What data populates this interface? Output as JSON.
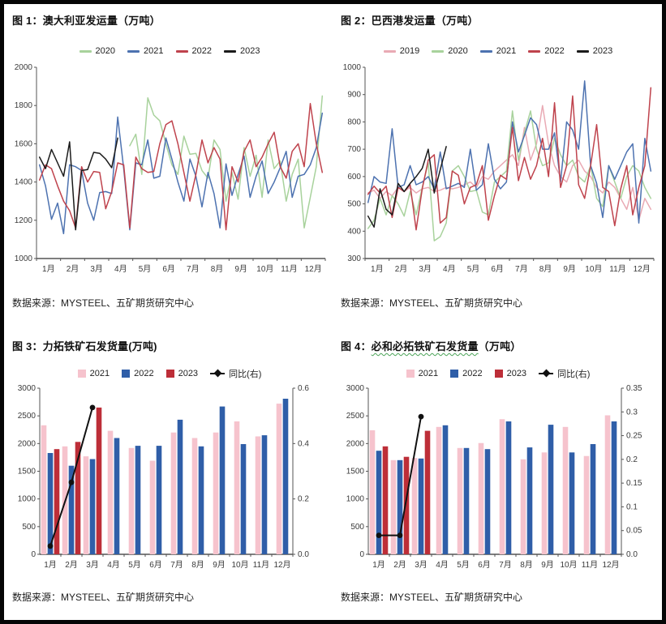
{
  "page": {
    "background": "#ffffff",
    "frame_color": "#050505"
  },
  "chart_data": [
    {
      "id": "australia-shipments",
      "type": "line",
      "title": "图 1：澳大利亚发运量（万吨）",
      "source": "数据来源：MYSTEEL、五矿期货研究中心",
      "x_tick_labels": [
        "1月",
        "2月",
        "3月",
        "4月",
        "5月",
        "6月",
        "7月",
        "8月",
        "9月",
        "10月",
        "11月",
        "12月"
      ],
      "ylim": [
        1000,
        2000
      ],
      "ytick_step": 200,
      "ytick_labels": [
        "1000",
        "1200",
        "1400",
        "1600",
        "1800",
        "2000"
      ],
      "weeks_per_year": 48,
      "grid": false,
      "legend_position": "top",
      "series": [
        {
          "name": "2020",
          "color": "#a8d29c",
          "start_week": 15,
          "values": [
            1590,
            1650,
            1440,
            1840,
            1750,
            1720,
            1600,
            1490,
            1440,
            1640,
            1545,
            1550,
            1460,
            1420,
            1620,
            1570,
            1300,
            1450,
            1310,
            1580,
            1430,
            1540,
            1320,
            1620,
            1470,
            1510,
            1300,
            1440,
            1520,
            1160,
            1320,
            1480,
            1850
          ]
        },
        {
          "name": "2021",
          "color": "#4d72b0",
          "start_week": 0,
          "values": [
            1490,
            1380,
            1205,
            1290,
            1130,
            1490,
            1480,
            1460,
            1290,
            1200,
            1345,
            1350,
            1340,
            1740,
            1470,
            1150,
            1500,
            1490,
            1620,
            1420,
            1430,
            1630,
            1520,
            1400,
            1300,
            1520,
            1430,
            1270,
            1450,
            1340,
            1160,
            1495,
            1330,
            1440,
            1535,
            1320,
            1430,
            1510,
            1340,
            1400,
            1475,
            1560,
            1320,
            1430,
            1440,
            1490,
            1580,
            1760
          ]
        },
        {
          "name": "2022",
          "color": "#bf434d",
          "start_week": 0,
          "values": [
            1410,
            1490,
            1470,
            1380,
            1300,
            1250,
            1160,
            1480,
            1400,
            1455,
            1450,
            1260,
            1350,
            1500,
            1490,
            1160,
            1530,
            1470,
            1450,
            1455,
            1600,
            1700,
            1720,
            1600,
            1450,
            1300,
            1440,
            1620,
            1500,
            1580,
            1520,
            1150,
            1480,
            1400,
            1560,
            1620,
            1480,
            1530,
            1600,
            1660,
            1480,
            1420,
            1560,
            1600,
            1480,
            1810,
            1600,
            1450
          ]
        },
        {
          "name": "2023",
          "color": "#1b1b1b",
          "start_week": 0,
          "values": [
            1530,
            1470,
            1570,
            1500,
            1430,
            1610,
            1150,
            1460,
            1465,
            1555,
            1550,
            1520,
            1475,
            1630
          ]
        }
      ]
    },
    {
      "id": "brazil-shipments",
      "type": "line",
      "title": "图 2：巴西港发运量（万吨）",
      "source": "数据来源：MYSTEEL、五矿期货研究中心",
      "x_tick_labels": [
        "1月",
        "2月",
        "3月",
        "4月",
        "5月",
        "6月",
        "7月",
        "8月",
        "9月",
        "10月",
        "11月",
        "12月"
      ],
      "ylim": [
        300,
        1000
      ],
      "ytick_step": 100,
      "ytick_labels": [
        "300",
        "400",
        "500",
        "600",
        "700",
        "800",
        "900",
        "1000"
      ],
      "weeks_per_year": 48,
      "grid": false,
      "legend_position": "top",
      "series": [
        {
          "name": "2019",
          "color": "#e9aab4",
          "start_week": 0,
          "values": [
            540,
            550,
            520,
            545,
            530,
            560,
            545,
            560,
            540,
            555,
            560,
            545,
            550,
            560,
            555,
            560,
            570,
            580,
            560,
            600,
            590,
            620,
            640,
            660,
            680,
            640,
            780,
            660,
            720,
            860,
            720,
            640,
            600,
            580,
            640,
            660,
            620,
            600,
            560,
            540,
            580,
            560,
            520,
            480,
            560,
            440,
            520,
            480
          ]
        },
        {
          "name": "2020",
          "color": "#a8d29c",
          "start_week": 0,
          "values": [
            410,
            440,
            520,
            460,
            530,
            500,
            455,
            545,
            460,
            560,
            650,
            365,
            380,
            430,
            620,
            640,
            600,
            545,
            550,
            470,
            460,
            580,
            600,
            620,
            840,
            660,
            760,
            840,
            700,
            640,
            650,
            740,
            680,
            640,
            660,
            600,
            580,
            640,
            520,
            490,
            640,
            580,
            520,
            600,
            640,
            620,
            560,
            520
          ]
        },
        {
          "name": "2021",
          "color": "#4d72b0",
          "start_week": 0,
          "values": [
            505,
            600,
            580,
            575,
            775,
            560,
            570,
            640,
            570,
            580,
            600,
            555,
            690,
            555,
            565,
            575,
            560,
            700,
            550,
            570,
            720,
            590,
            555,
            580,
            800,
            690,
            750,
            815,
            790,
            700,
            700,
            760,
            580,
            800,
            770,
            700,
            950,
            640,
            575,
            450,
            640,
            590,
            640,
            690,
            720,
            430,
            740,
            620
          ]
        },
        {
          "name": "2022",
          "color": "#bf434d",
          "start_week": 0,
          "values": [
            535,
            565,
            540,
            565,
            450,
            560,
            545,
            570,
            405,
            555,
            660,
            680,
            430,
            450,
            620,
            605,
            500,
            560,
            570,
            640,
            440,
            530,
            605,
            590,
            780,
            585,
            670,
            590,
            640,
            740,
            600,
            870,
            560,
            640,
            895,
            570,
            520,
            640,
            790,
            560,
            545,
            420,
            555,
            640,
            460,
            560,
            640,
            925
          ]
        },
        {
          "name": "2023",
          "color": "#1b1b1b",
          "start_week": 0,
          "values": [
            455,
            415,
            555,
            480,
            460,
            575,
            545,
            575,
            600,
            630,
            700,
            540,
            625,
            710
          ]
        }
      ]
    },
    {
      "id": "rio-tinto-shipments",
      "type": "bar",
      "title": "图 3：力拓铁矿石发货量(万吨)",
      "source": "数据来源：MYSTEEL、五矿期货研究中心",
      "categories": [
        "1月",
        "2月",
        "3月",
        "4月",
        "5月",
        "6月",
        "7月",
        "8月",
        "9月",
        "10月",
        "11月",
        "12月"
      ],
      "ylim_left": [
        0,
        3000
      ],
      "ytick_step_left": 500,
      "ytick_labels_left": [
        "0",
        "500",
        "1000",
        "1500",
        "2000",
        "2500",
        "3000"
      ],
      "ylim_right": [
        0,
        0.6
      ],
      "ytick_step_right": 0.2,
      "ytick_labels_right": [
        "0.0",
        "0.2",
        "0.4",
        "0.6"
      ],
      "grid": false,
      "legend_position": "top",
      "bar_series": [
        {
          "name": "2021",
          "color": "#f6c3cd",
          "values": [
            2330,
            1950,
            1770,
            2230,
            1920,
            1690,
            2200,
            2100,
            2200,
            2400,
            2130,
            2720
          ]
        },
        {
          "name": "2022",
          "color": "#2f5ea8",
          "values": [
            1830,
            1600,
            1720,
            2100,
            1960,
            1960,
            2430,
            1950,
            2670,
            1990,
            2150,
            2810
          ]
        },
        {
          "name": "2023",
          "color": "#bd2e38",
          "values": [
            1900,
            2030,
            2650,
            null,
            null,
            null,
            null,
            null,
            null,
            null,
            null,
            null
          ]
        }
      ],
      "line_series": {
        "name": "同比(右)",
        "color": "#111111",
        "axis": "right",
        "values": [
          0.03,
          0.26,
          0.53,
          null,
          null,
          null,
          null,
          null,
          null,
          null,
          null,
          null
        ]
      }
    },
    {
      "id": "bhp-shipments",
      "type": "bar",
      "title_prefix": "图 4：",
      "title_main": "必和必拓铁矿石发货量",
      "title_suffix": "（万吨）",
      "source": "数据来源：MYSTEEL、五矿期货研究中心",
      "categories": [
        "1月",
        "2月",
        "3月",
        "4月",
        "5月",
        "6月",
        "7月",
        "8月",
        "9月",
        "10月",
        "11月",
        "12月"
      ],
      "ylim_left": [
        0,
        3000
      ],
      "ytick_step_left": 500,
      "ytick_labels_left": [
        "0",
        "500",
        "1000",
        "1500",
        "2000",
        "2500",
        "3000"
      ],
      "ylim_right": [
        0,
        0.35
      ],
      "ytick_step_right": 0.05,
      "ytick_labels_right": [
        "0.0",
        "0.05",
        "0.1",
        "0.15",
        "0.2",
        "0.25",
        "0.3",
        "0.35"
      ],
      "grid": false,
      "legend_position": "top",
      "bar_series": [
        {
          "name": "2021",
          "color": "#f6c3cd",
          "values": [
            2240,
            1700,
            1740,
            2300,
            1920,
            2010,
            2440,
            1715,
            1840,
            2300,
            1775,
            2510
          ]
        },
        {
          "name": "2022",
          "color": "#2f5ea8",
          "values": [
            1870,
            1700,
            1730,
            2330,
            1920,
            1900,
            2400,
            1930,
            2340,
            1840,
            1990,
            2400
          ]
        },
        {
          "name": "2023",
          "color": "#bd2e38",
          "values": [
            1950,
            1760,
            2230,
            null,
            null,
            null,
            null,
            null,
            null,
            null,
            null,
            null
          ]
        }
      ],
      "line_series": {
        "name": "同比(右)",
        "color": "#111111",
        "axis": "right",
        "values": [
          0.04,
          0.04,
          0.29,
          null,
          null,
          null,
          null,
          null,
          null,
          null,
          null,
          null
        ]
      }
    }
  ]
}
